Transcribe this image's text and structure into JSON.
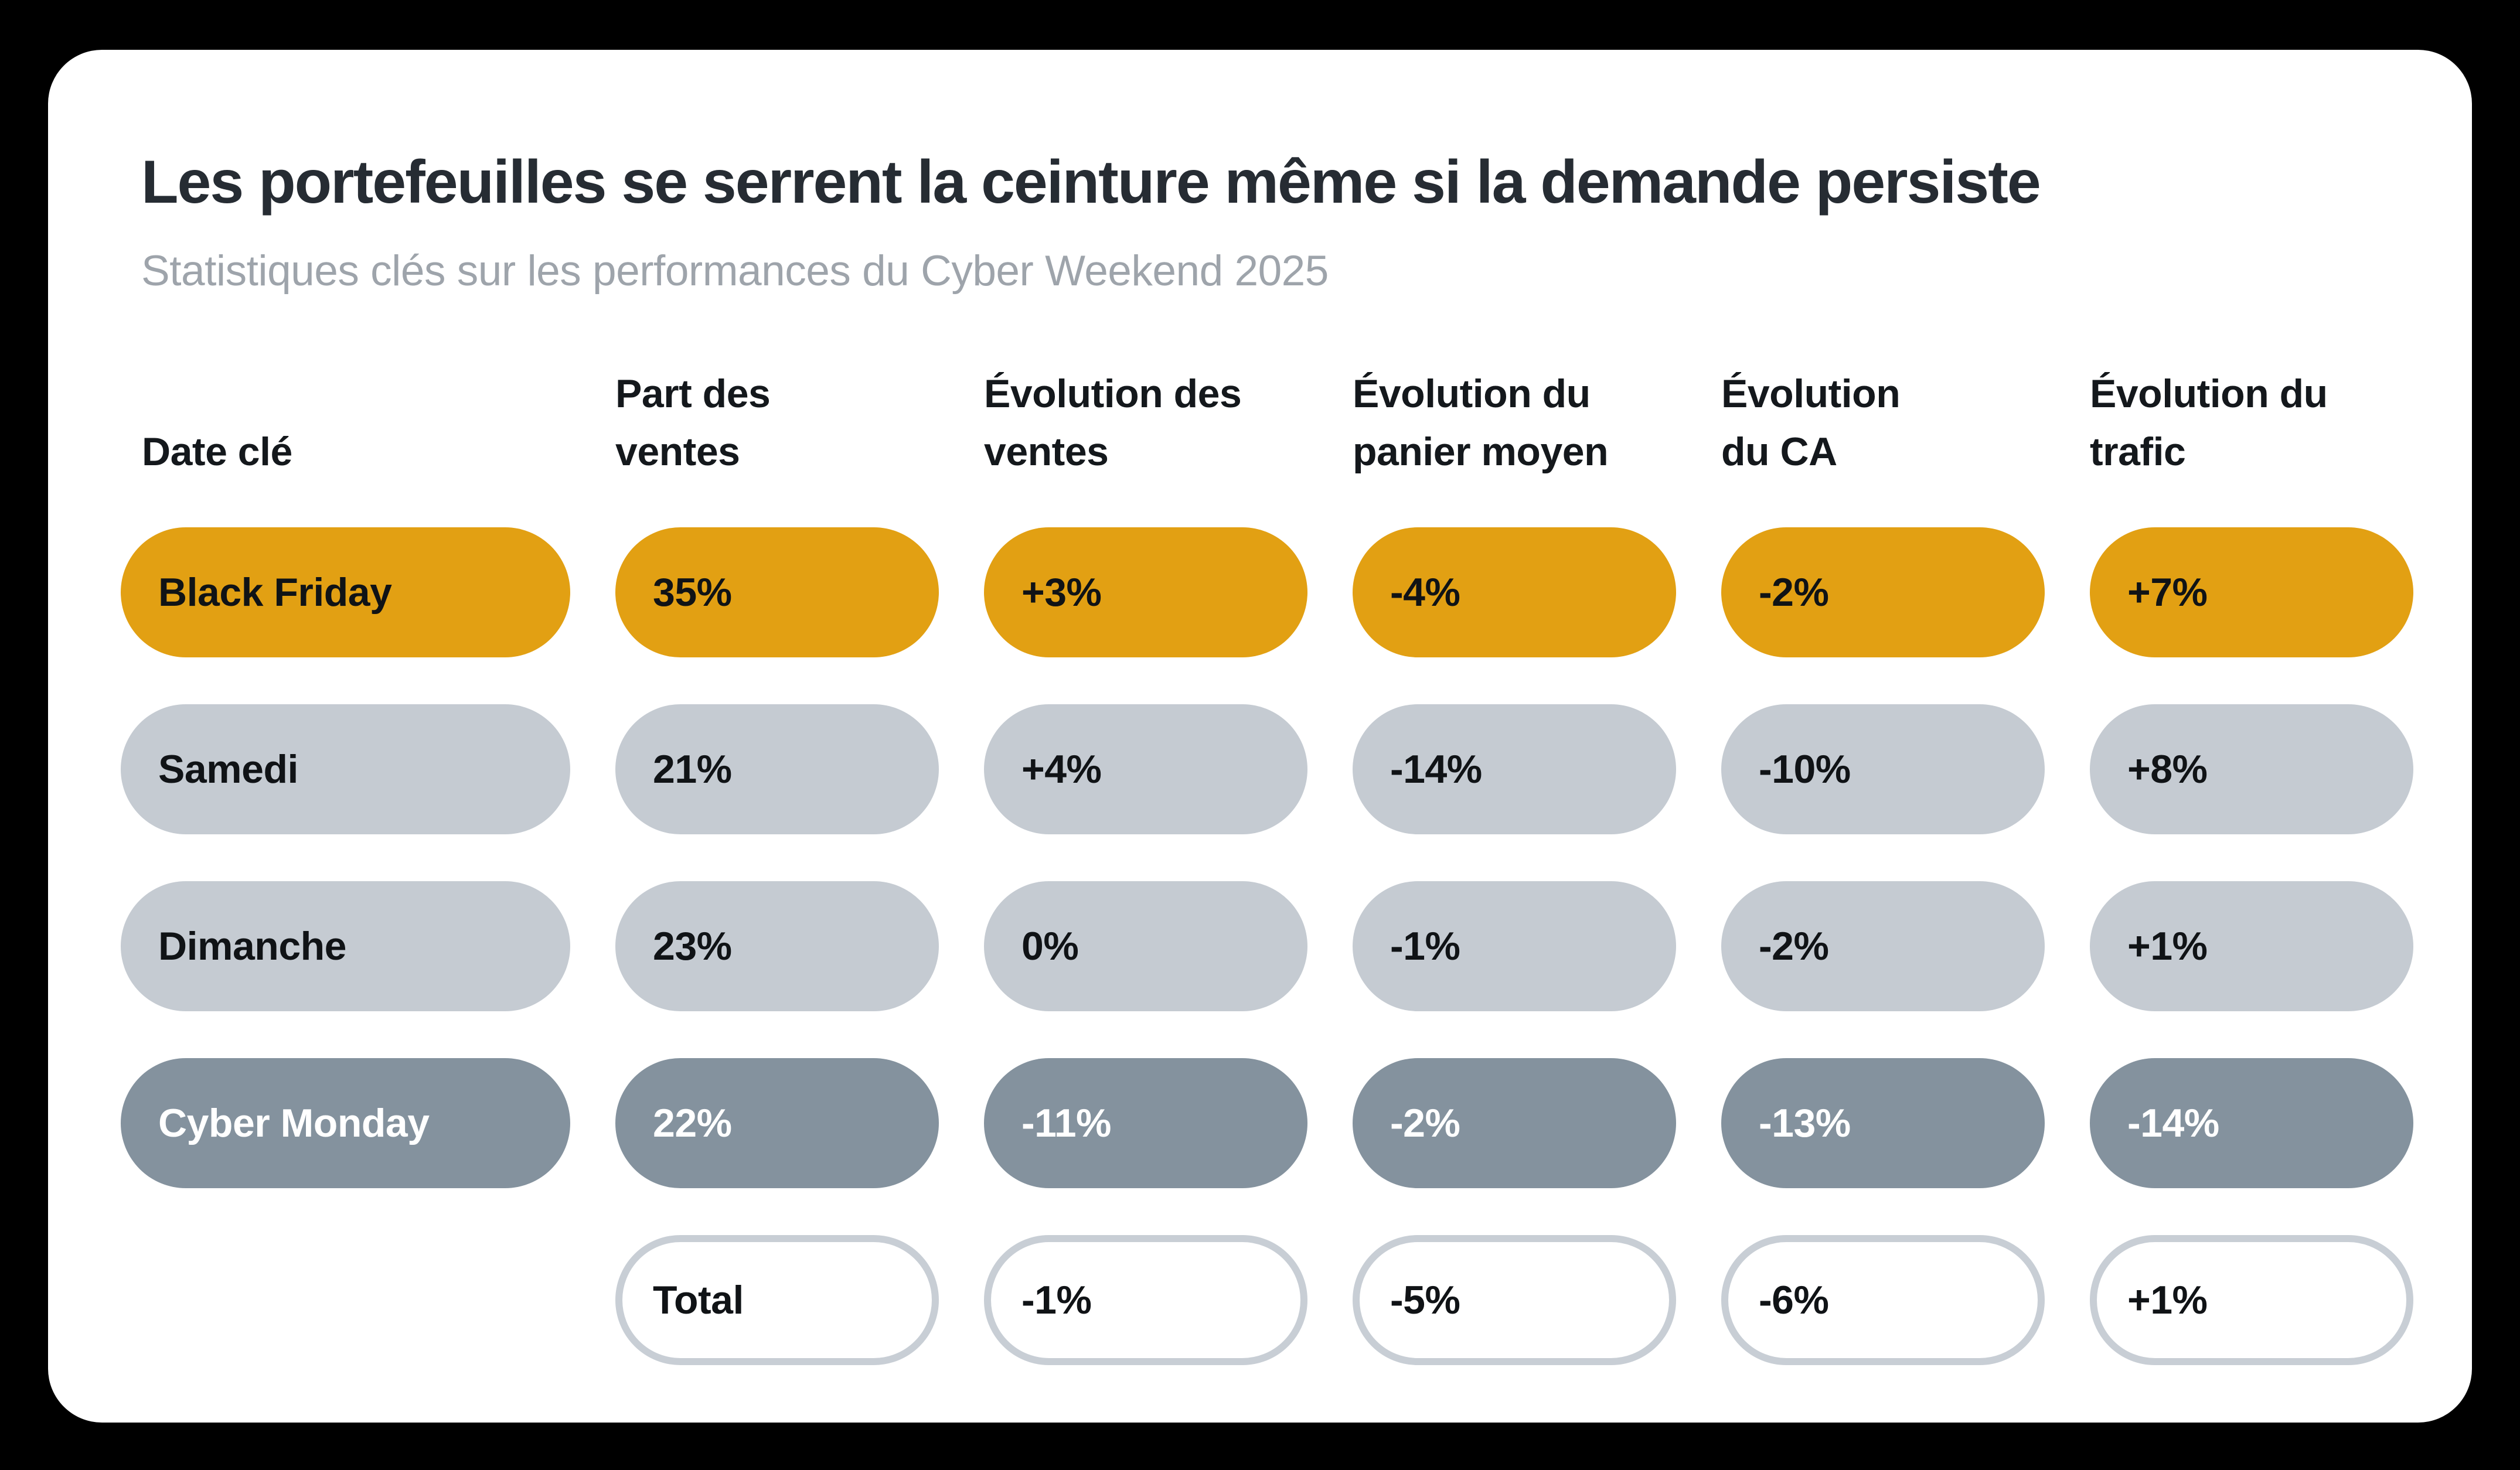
{
  "header": {
    "title": "Les portefeuilles se serrent la ceinture même si la demande persiste",
    "subtitle": "Statistiques clés sur les performances du Cyber Weekend 2025"
  },
  "chart_data": {
    "type": "table",
    "title": "Les portefeuilles se serrent la ceinture même si la demande persiste",
    "subtitle": "Statistiques clés sur les performances du Cyber Weekend 2025",
    "columns": [
      "Date clé",
      "Part des ventes",
      "Évolution des ventes",
      "Évolution du panier moyen",
      "Évolution du CA",
      "Évolution du trafic"
    ],
    "column_headers_display": [
      "Date clé",
      "Part des\nventes",
      "Évolution des\nventes",
      "Évolution du\npanier moyen",
      "Évolution\ndu CA",
      "Évolution du\ntrafic"
    ],
    "rows": [
      {
        "label": "Black Friday",
        "values": [
          "35%",
          "+3%",
          "-4%",
          "-2%",
          "+7%"
        ],
        "variant": "accent"
      },
      {
        "label": "Samedi",
        "values": [
          "21%",
          "+4%",
          "-14%",
          "-10%",
          "+8%"
        ],
        "variant": "light"
      },
      {
        "label": "Dimanche",
        "values": [
          "23%",
          "0%",
          "-1%",
          "-2%",
          "+1%"
        ],
        "variant": "light"
      },
      {
        "label": "Cyber Monday",
        "values": [
          "22%",
          "-11%",
          "-2%",
          "-13%",
          "-14%"
        ],
        "variant": "dark"
      },
      {
        "label": "",
        "values": [
          "Total",
          "-1%",
          "-5%",
          "-6%",
          "+1%"
        ],
        "variant": "outline"
      }
    ],
    "legend": null,
    "grid": false
  },
  "colors": {
    "background": "#000000",
    "card": "#FFFFFF",
    "accent_orange": "#E2A013",
    "light_gray": "#C5CBD2",
    "slate_gray": "#84929E",
    "outline_border": "#C8CED5",
    "title_text": "#262C33",
    "subtitle_text": "#9EA4AB",
    "pill_text_dark": "#101316",
    "pill_text_light": "#FFFFFF"
  }
}
